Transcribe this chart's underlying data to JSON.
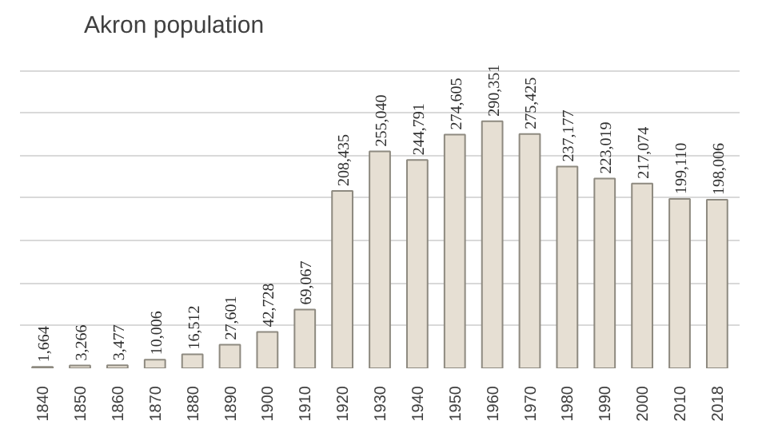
{
  "chart_data": {
    "type": "bar",
    "title": "Akron population",
    "categories": [
      "1840",
      "1850",
      "1860",
      "1870",
      "1880",
      "1890",
      "1900",
      "1910",
      "1920",
      "1930",
      "1940",
      "1950",
      "1960",
      "1970",
      "1980",
      "1990",
      "2000",
      "2010",
      "2018"
    ],
    "values": [
      1664,
      3266,
      3477,
      10006,
      16512,
      27601,
      42728,
      69067,
      208435,
      255040,
      244791,
      274605,
      290351,
      275425,
      237177,
      223019,
      217074,
      199110,
      198006
    ],
    "value_labels": [
      "1,664",
      "3,266",
      "3,477",
      "10,006",
      "16,512",
      "27,601",
      "42,728",
      "69,067",
      "208,435",
      "255,040",
      "244,791",
      "274,605",
      "290,351",
      "275,425",
      "237,177",
      "223,019",
      "217,074",
      "199,110",
      "198,006"
    ],
    "color": "#e6dfd3",
    "tick_labels": "x",
    "grid": "y"
  }
}
